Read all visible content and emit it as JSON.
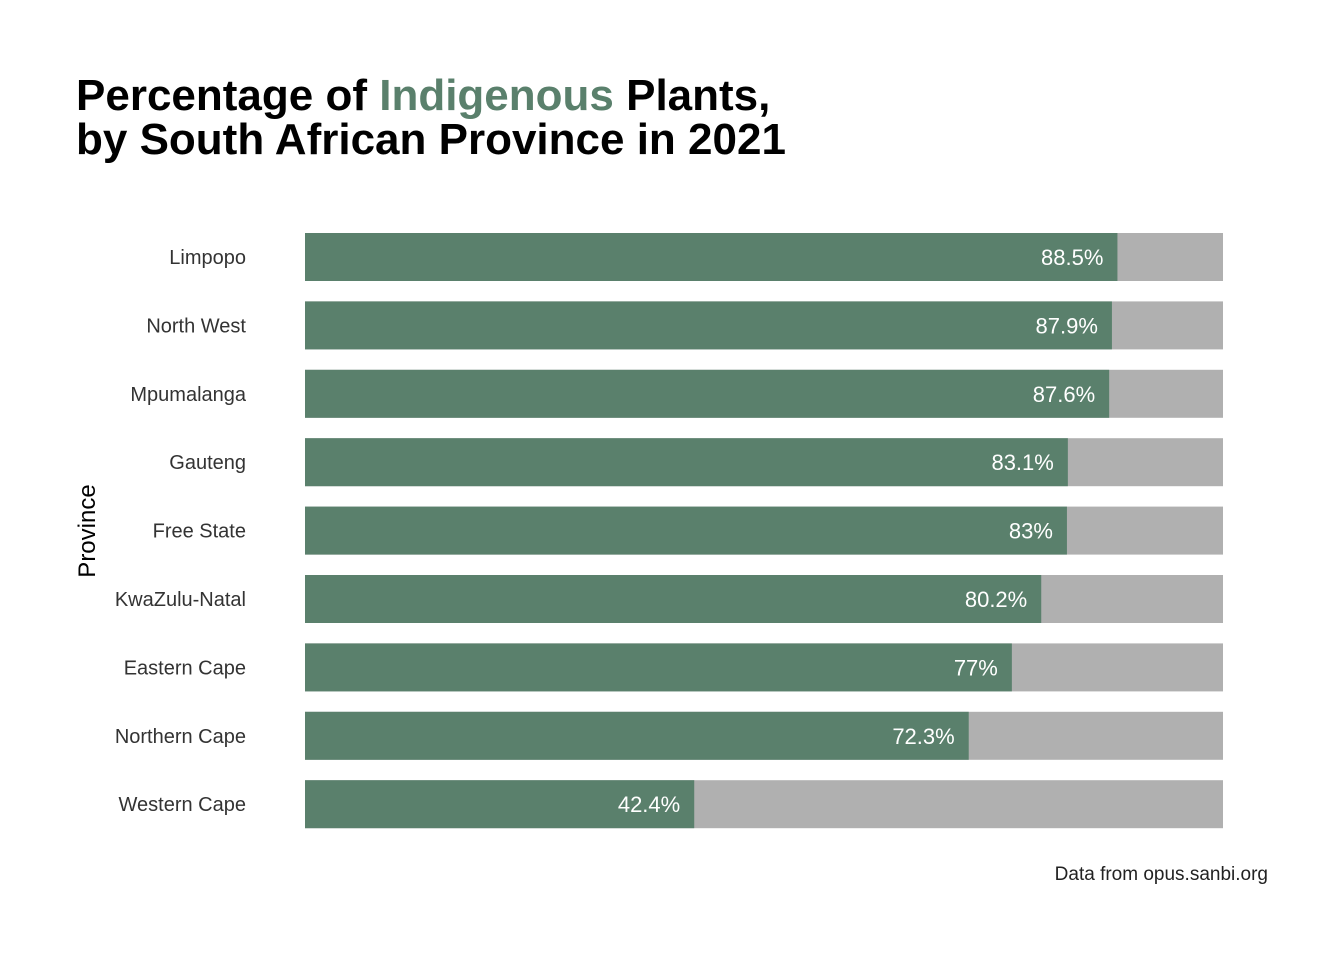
{
  "chart_data": {
    "type": "bar",
    "orientation": "horizontal",
    "stacked_to": 100,
    "title": {
      "line1_before": "Percentage of ",
      "line1_highlight": "Indigenous",
      "line1_after": " Plants,",
      "line2": "by South African Province in 2021"
    },
    "ylabel": "Province",
    "xlabel": "",
    "caption": "Data from opus.sanbi.org",
    "categories": [
      "Limpopo",
      "North West",
      "Mpumalanga",
      "Gauteng",
      "Free State",
      "KwaZulu-Natal",
      "Eastern Cape",
      "Northern Cape",
      "Western Cape"
    ],
    "values": [
      88.5,
      87.9,
      87.6,
      83.1,
      83,
      80.2,
      77,
      72.3,
      42.4
    ],
    "value_labels": [
      "88.5%",
      "87.9%",
      "87.6%",
      "83.1%",
      "83%",
      "80.2%",
      "77%",
      "72.3%",
      "42.4%"
    ],
    "xlim": [
      0,
      100
    ],
    "grid": false,
    "colors": {
      "indigenous": "#5a806c",
      "remainder": "#b0b0b0",
      "highlight_text": "#5a806c"
    }
  }
}
